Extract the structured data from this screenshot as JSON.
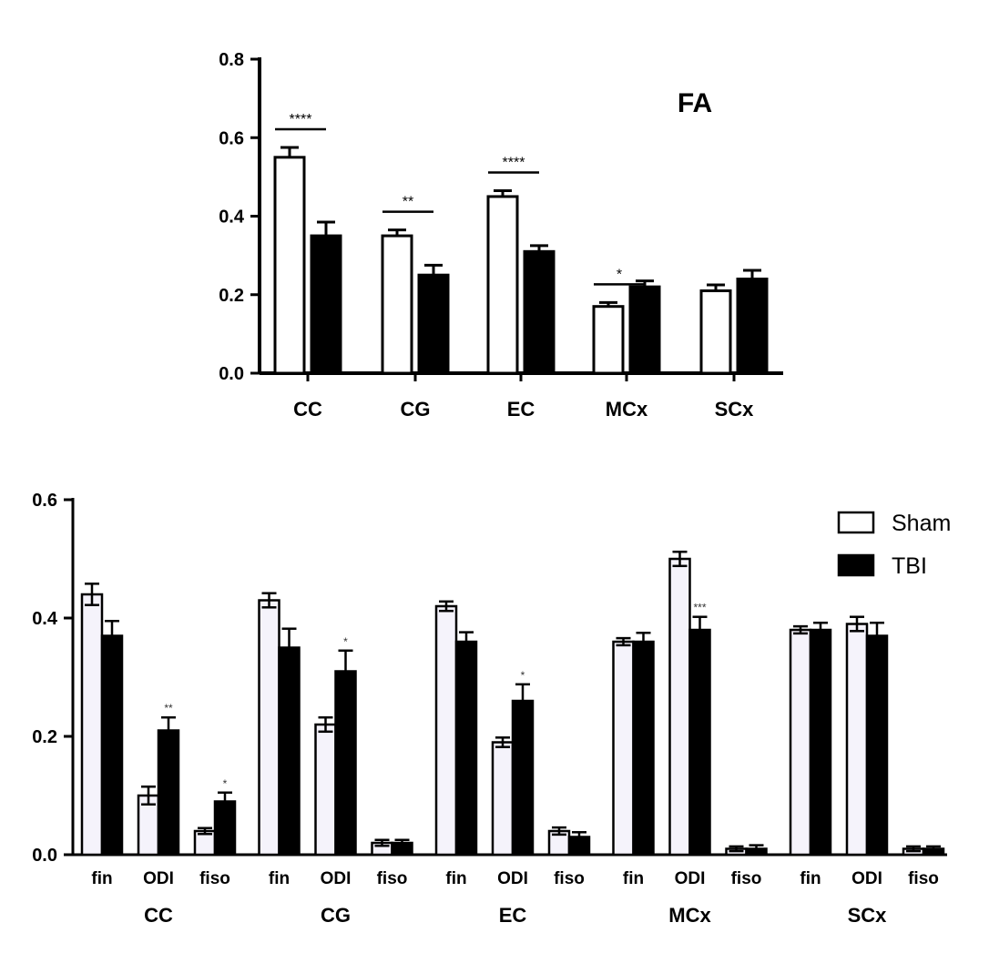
{
  "chart_data": [
    {
      "type": "bar",
      "title": "FA",
      "categories": [
        "CC",
        "CG",
        "EC",
        "MCx",
        "SCx"
      ],
      "series": [
        {
          "name": "Sham",
          "values": [
            0.55,
            0.35,
            0.45,
            0.17,
            0.21
          ],
          "errors": [
            0.025,
            0.015,
            0.015,
            0.01,
            0.015
          ],
          "color": "#ffffff"
        },
        {
          "name": "TBI",
          "values": [
            0.35,
            0.25,
            0.31,
            0.22,
            0.24
          ],
          "errors": [
            0.035,
            0.025,
            0.015,
            0.015,
            0.022
          ],
          "color": "#000000"
        }
      ],
      "significance": [
        "****",
        "**",
        "****",
        "*",
        ""
      ],
      "ylim": [
        0,
        0.8
      ],
      "yticks": [
        "0.0",
        "0.2",
        "0.4",
        "0.6",
        "0.8"
      ],
      "xlabel": "",
      "ylabel": ""
    },
    {
      "type": "bar",
      "groups": [
        "CC",
        "CG",
        "EC",
        "MCx",
        "SCx"
      ],
      "subcategories": [
        "fin",
        "ODI",
        "fiso"
      ],
      "series": [
        {
          "name": "Sham",
          "values": [
            [
              0.44,
              0.1,
              0.04
            ],
            [
              0.43,
              0.22,
              0.02
            ],
            [
              0.42,
              0.19,
              0.04
            ],
            [
              0.36,
              0.5,
              0.01
            ],
            [
              0.38,
              0.39,
              0.01
            ]
          ],
          "errors": [
            [
              0.018,
              0.015,
              0.005
            ],
            [
              0.012,
              0.012,
              0.005
            ],
            [
              0.008,
              0.008,
              0.006
            ],
            [
              0.006,
              0.012,
              0.004
            ],
            [
              0.006,
              0.012,
              0.004
            ]
          ],
          "color": "#f5f3fb"
        },
        {
          "name": "TBI",
          "values": [
            [
              0.37,
              0.21,
              0.09
            ],
            [
              0.35,
              0.31,
              0.02
            ],
            [
              0.36,
              0.26,
              0.03
            ],
            [
              0.36,
              0.38,
              0.01
            ],
            [
              0.38,
              0.37,
              0.01
            ]
          ],
          "errors": [
            [
              0.025,
              0.022,
              0.015
            ],
            [
              0.032,
              0.035,
              0.005
            ],
            [
              0.016,
              0.028,
              0.008
            ],
            [
              0.015,
              0.022,
              0.006
            ],
            [
              0.012,
              0.022,
              0.004
            ]
          ],
          "color": "#000000"
        }
      ],
      "significance": [
        [
          "",
          "**",
          "*"
        ],
        [
          "",
          "*",
          ""
        ],
        [
          "",
          "*",
          ""
        ],
        [
          "",
          "***",
          ""
        ],
        [
          "",
          "",
          ""
        ]
      ],
      "ylim": [
        0,
        0.6
      ],
      "yticks": [
        "0.0",
        "0.2",
        "0.4",
        "0.6"
      ],
      "legend_position": "top-right",
      "xlabel": "",
      "ylabel": ""
    }
  ]
}
